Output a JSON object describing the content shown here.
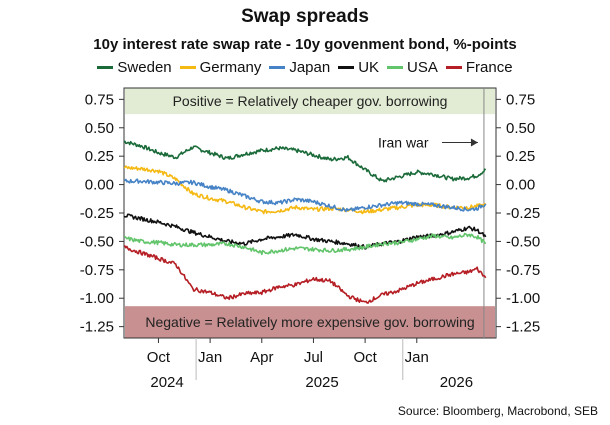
{
  "chart_data": {
    "type": "line",
    "title": "Swap spreads",
    "subtitle": "10y interest rate swap rate - 10y govenment bond, %-points",
    "ylim": [
      -1.35,
      0.85
    ],
    "yticks": [
      "0.75",
      "0.50",
      "0.25",
      "0.00",
      "-0.25",
      "-0.50",
      "-0.75",
      "-1.00",
      "-1.25"
    ],
    "ytick_values": [
      0.75,
      0.5,
      0.25,
      0.0,
      -0.25,
      -0.5,
      -0.75,
      -1.0,
      -1.25
    ],
    "x_range": [
      0,
      21.6
    ],
    "x_ticks": [
      {
        "label": "Oct",
        "x": 2
      },
      {
        "label": "Jan",
        "x": 5
      },
      {
        "label": "Apr",
        "x": 8
      },
      {
        "label": "Jul",
        "x": 11
      },
      {
        "label": "Oct",
        "x": 14
      },
      {
        "label": "Jan",
        "x": 17
      }
    ],
    "year_labels": [
      {
        "label": "2024",
        "x": 2.5
      },
      {
        "label": "2025",
        "x": 11.5
      },
      {
        "label": "2026",
        "x": 19.3
      }
    ],
    "x_units": "months since Aug 2024",
    "bands": [
      {
        "label": "Positive = Relatively cheaper gov. borrowing",
        "from": 0.62,
        "to": 0.85,
        "color": "#e2ebd3"
      },
      {
        "label": "Negative = Relatively more expensive gov. borrowing",
        "from": -1.35,
        "to": -1.07,
        "color": "#c89090"
      }
    ],
    "annotation": {
      "label": "Iran war",
      "x": 20.9,
      "y": 0.37
    },
    "series": [
      {
        "name": "Sweden",
        "color": "#1b6b3a",
        "x": [
          0,
          1,
          2,
          3,
          4,
          5,
          6,
          7,
          8,
          9,
          10,
          11,
          12,
          13,
          14,
          15,
          16,
          17,
          18,
          19,
          20,
          20.5,
          21
        ],
        "values": [
          0.38,
          0.34,
          0.28,
          0.24,
          0.33,
          0.28,
          0.23,
          0.27,
          0.3,
          0.32,
          0.3,
          0.26,
          0.22,
          0.24,
          0.13,
          0.03,
          0.07,
          0.11,
          0.09,
          0.05,
          0.06,
          0.08,
          0.13
        ]
      },
      {
        "name": "Germany",
        "color": "#f5b914",
        "x": [
          0,
          1,
          2,
          3,
          4,
          5,
          6,
          7,
          8,
          9,
          10,
          11,
          12,
          13,
          14,
          15,
          16,
          17,
          18,
          19,
          20,
          20.5,
          21
        ],
        "values": [
          0.15,
          0.14,
          0.12,
          0.05,
          -0.08,
          -0.12,
          -0.15,
          -0.2,
          -0.24,
          -0.23,
          -0.2,
          -0.22,
          -0.21,
          -0.22,
          -0.24,
          -0.22,
          -0.2,
          -0.18,
          -0.18,
          -0.2,
          -0.2,
          -0.19,
          -0.18
        ]
      },
      {
        "name": "Japan",
        "color": "#4683c6",
        "x": [
          0,
          1,
          2,
          3,
          4,
          5,
          6,
          7,
          8,
          9,
          10,
          11,
          12,
          13,
          14,
          15,
          16,
          17,
          18,
          19,
          20,
          20.5,
          21
        ],
        "values": [
          0.03,
          0.03,
          0.02,
          0.01,
          0.02,
          -0.02,
          -0.05,
          -0.1,
          -0.15,
          -0.16,
          -0.13,
          -0.15,
          -0.19,
          -0.23,
          -0.2,
          -0.18,
          -0.16,
          -0.17,
          -0.18,
          -0.2,
          -0.22,
          -0.21,
          -0.17
        ]
      },
      {
        "name": "UK",
        "color": "#111111",
        "x": [
          0,
          1,
          2,
          3,
          4,
          5,
          6,
          7,
          8,
          9,
          10,
          11,
          12,
          13,
          14,
          15,
          16,
          17,
          18,
          19,
          20,
          20.5,
          21
        ],
        "values": [
          -0.27,
          -0.3,
          -0.33,
          -0.37,
          -0.42,
          -0.46,
          -0.5,
          -0.52,
          -0.48,
          -0.46,
          -0.44,
          -0.48,
          -0.5,
          -0.52,
          -0.55,
          -0.52,
          -0.5,
          -0.46,
          -0.45,
          -0.42,
          -0.38,
          -0.4,
          -0.46
        ]
      },
      {
        "name": "USA",
        "color": "#62c46b",
        "x": [
          0,
          1,
          2,
          3,
          4,
          5,
          6,
          7,
          8,
          9,
          10,
          11,
          12,
          13,
          14,
          15,
          16,
          17,
          18,
          19,
          20,
          20.5,
          21
        ],
        "values": [
          -0.47,
          -0.5,
          -0.51,
          -0.53,
          -0.53,
          -0.53,
          -0.52,
          -0.55,
          -0.6,
          -0.58,
          -0.56,
          -0.57,
          -0.58,
          -0.57,
          -0.55,
          -0.52,
          -0.51,
          -0.48,
          -0.45,
          -0.47,
          -0.44,
          -0.46,
          -0.52
        ]
      },
      {
        "name": "France",
        "color": "#b51e24",
        "x": [
          0,
          1,
          2,
          3,
          4,
          5,
          6,
          7,
          8,
          9,
          10,
          11,
          12,
          13,
          14,
          15,
          16,
          17,
          18,
          19,
          20,
          20.5,
          21
        ],
        "values": [
          -0.55,
          -0.6,
          -0.65,
          -0.7,
          -0.92,
          -0.95,
          -1.0,
          -0.96,
          -0.95,
          -0.9,
          -0.88,
          -0.83,
          -0.85,
          -0.98,
          -1.04,
          -0.97,
          -0.93,
          -0.87,
          -0.83,
          -0.79,
          -0.77,
          -0.74,
          -0.82
        ]
      }
    ],
    "source": "Source: Bloomberg, Macrobond, SEB"
  }
}
